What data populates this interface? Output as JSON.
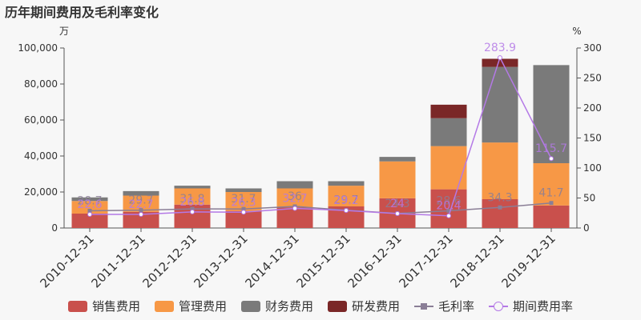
{
  "title": "历年期间费用及毛利率变化",
  "left_unit": "万",
  "right_unit": "%",
  "colors": {
    "sales": "#c9504c",
    "admin": "#f79846",
    "finance": "#7a7a7a",
    "rd": "#7a2727",
    "gross": "#8a7e96",
    "period": "#b479e6"
  },
  "chart_data": {
    "type": "bar",
    "stacked": true,
    "categories": [
      "2010-12-31",
      "2011-12-31",
      "2012-12-31",
      "2013-12-31",
      "2014-12-31",
      "2015-12-31",
      "2016-12-31",
      "2017-12-31",
      "2018-12-31",
      "2019-12-31"
    ],
    "y_left": {
      "min": 0,
      "max": 100000,
      "ticks": [
        0,
        20000,
        40000,
        60000,
        80000,
        100000
      ],
      "tick_labels": [
        "0",
        "20,000",
        "40,000",
        "60,000",
        "80,000",
        "100,000"
      ]
    },
    "y_right": {
      "min": 0,
      "max": 300,
      "ticks": [
        0,
        50,
        100,
        150,
        200,
        250,
        300
      ],
      "tick_labels": [
        "0",
        "50",
        "100",
        "150",
        "200",
        "250",
        "300"
      ]
    },
    "series": [
      {
        "name": "销售费用",
        "key": "sales",
        "axis": "left",
        "values": [
          8000,
          9000,
          13000,
          9500,
          11500,
          12000,
          16500,
          21500,
          16000,
          12500
        ]
      },
      {
        "name": "管理费用",
        "key": "admin",
        "axis": "left",
        "values": [
          7000,
          9000,
          9000,
          10500,
          10500,
          11500,
          20500,
          24000,
          31500,
          23500
        ]
      },
      {
        "name": "财务费用",
        "key": "finance",
        "axis": "left",
        "values": [
          2000,
          2500,
          1500,
          2000,
          4000,
          2500,
          2500,
          15500,
          42000,
          54500
        ]
      },
      {
        "name": "研发费用",
        "key": "rd",
        "axis": "left",
        "values": [
          0,
          0,
          0,
          0,
          0,
          0,
          0,
          7500,
          4500,
          0
        ]
      },
      {
        "name": "毛利率",
        "key": "gross",
        "axis": "right",
        "type": "line",
        "marker": "square",
        "values": [
          28.7,
          29.7,
          31.8,
          31.7,
          36.0,
          29.7,
          24.3,
          28.6,
          34.3,
          41.7
        ],
        "labels": [
          "28.7",
          "29.7",
          "31.8",
          "31.7",
          "36",
          "29.7",
          "24.3",
          "28.6",
          "34.3",
          "41.7"
        ]
      },
      {
        "name": "期间费用率",
        "key": "period",
        "axis": "right",
        "type": "line",
        "marker": "circle",
        "values": [
          22.6,
          22.7,
          26.8,
          26.3,
          32.7,
          29.2,
          24.0,
          20.4,
          283.9,
          115.7
        ],
        "labels": [
          "22.6",
          "22.7",
          "26.8",
          "26.3",
          "32.7",
          "29.2",
          "24",
          "20.4",
          "283.9",
          "115.7"
        ]
      }
    ],
    "legend_position": "bottom"
  }
}
